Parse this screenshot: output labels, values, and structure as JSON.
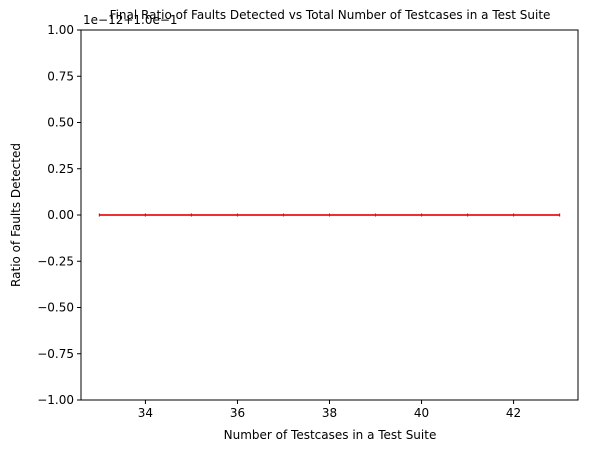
{
  "chart_data": {
    "type": "line",
    "title": "Final Ratio of Faults Detected vs Total Number of Testcases in a Test Suite",
    "xlabel": "Number of Testcases in a Test Suite",
    "ylabel": "Ratio of Faults Detected",
    "offset_text": "1e−12+1.0e−1",
    "xlim": [
      32.6,
      43.4
    ],
    "ylim": [
      -1.0,
      1.0
    ],
    "xticks": [
      34,
      36,
      38,
      40,
      42
    ],
    "yticks": [
      -1.0,
      -0.75,
      -0.5,
      -0.25,
      0.0,
      0.25,
      0.5,
      0.75,
      1.0
    ],
    "ytick_labels": [
      "−1.00",
      "−0.75",
      "−0.50",
      "−0.25",
      "0.00",
      "0.25",
      "0.50",
      "0.75",
      "1.00"
    ],
    "xtick_labels": [
      "34",
      "36",
      "38",
      "40",
      "42"
    ],
    "grid": false,
    "series": [
      {
        "color": "#ff0000",
        "x": [
          33,
          34,
          35,
          36,
          37,
          38,
          39,
          40,
          41,
          42,
          43
        ],
        "y": [
          0.0,
          0.0,
          0.0,
          0.0,
          0.0,
          0.0,
          0.0,
          0.0,
          0.0,
          0.0,
          0.0
        ]
      },
      {
        "color": "#000000",
        "x": [
          33,
          34,
          35,
          36,
          37,
          38,
          39,
          40,
          41,
          42,
          43
        ],
        "y": [
          0.0,
          0.0,
          0.0,
          0.0,
          0.0,
          0.0,
          0.0,
          0.0,
          0.0,
          0.0,
          0.0
        ]
      }
    ]
  }
}
